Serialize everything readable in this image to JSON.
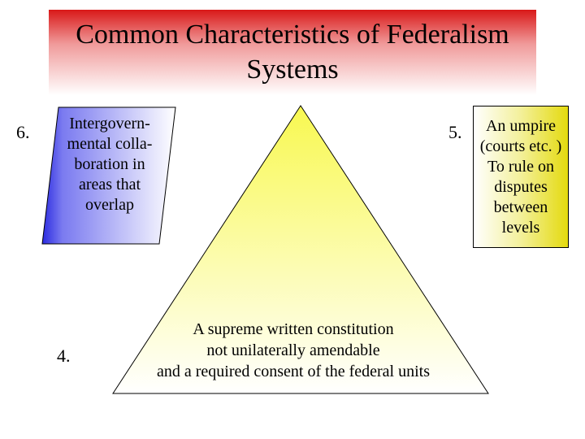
{
  "title": "Common Characteristics of Federalism Systems",
  "numbers": {
    "six": "6.",
    "five": "5.",
    "four": "4."
  },
  "left_box": {
    "text": "Intergovern-\nmental colla-\nboration in\nareas that\noverlap",
    "gradient_start": "#2b2be0",
    "gradient_end": "#ffffff",
    "stroke": "#000000"
  },
  "right_box": {
    "text": "An umpire\n(courts etc. )\nTo rule on\ndisputes\nbetween\nlevels",
    "gradient_start": "#ffffff",
    "gradient_end": "#e4da0e",
    "stroke": "#000000"
  },
  "triangle": {
    "text": "A supreme written constitution\nnot unilaterally amendable\nand a required consent of the federal units",
    "gradient_top": "#f8f850",
    "gradient_bottom": "#ffffff",
    "stroke": "#000000"
  },
  "title_banner": {
    "gradient_top": "#d91818",
    "gradient_bottom": "#ffffff"
  },
  "font_family": "Times New Roman",
  "title_fontsize": 34,
  "body_fontsize": 20,
  "background_color": "#ffffff"
}
